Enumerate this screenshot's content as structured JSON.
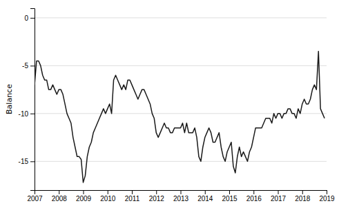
{
  "chart_data": {
    "type": "line",
    "ylabel": "Balance",
    "x": [
      2007.0,
      2007.0833333333333,
      2007.1666666666667,
      2007.25,
      2007.3333333333333,
      2007.4166666666667,
      2007.5,
      2007.5833333333333,
      2007.6666666666667,
      2007.75,
      2007.8333333333333,
      2007.9166666666667,
      2008.0,
      2008.0833333333333,
      2008.1666666666667,
      2008.25,
      2008.3333333333333,
      2008.4166666666667,
      2008.5,
      2008.5833333333333,
      2008.6666666666667,
      2008.75,
      2008.8333333333333,
      2008.9166666666667,
      2009.0,
      2009.0833333333333,
      2009.1666666666667,
      2009.25,
      2009.3333333333333,
      2009.4166666666667,
      2009.5,
      2009.5833333333333,
      2009.6666666666667,
      2009.75,
      2009.8333333333333,
      2009.9166666666667,
      2010.0,
      2010.0833333333333,
      2010.1666666666667,
      2010.25,
      2010.3333333333333,
      2010.4166666666667,
      2010.5,
      2010.5833333333333,
      2010.6666666666667,
      2010.75,
      2010.8333333333333,
      2010.9166666666667,
      2011.0,
      2011.0833333333333,
      2011.1666666666667,
      2011.25,
      2011.3333333333333,
      2011.4166666666667,
      2011.5,
      2011.5833333333333,
      2011.6666666666667,
      2011.75,
      2011.8333333333333,
      2011.9166666666667,
      2012.0,
      2012.0833333333333,
      2012.1666666666667,
      2012.25,
      2012.3333333333333,
      2012.4166666666667,
      2012.5,
      2012.5833333333333,
      2012.6666666666667,
      2012.75,
      2012.8333333333333,
      2012.9166666666667,
      2013.0,
      2013.0833333333333,
      2013.1666666666667,
      2013.25,
      2013.3333333333333,
      2013.4166666666667,
      2013.5,
      2013.5833333333333,
      2013.6666666666667,
      2013.75,
      2013.8333333333333,
      2013.9166666666667,
      2014.0,
      2014.0833333333333,
      2014.1666666666667,
      2014.25,
      2014.3333333333333,
      2014.4166666666667,
      2014.5,
      2014.5833333333333,
      2014.6666666666667,
      2014.75,
      2014.8333333333333,
      2014.9166666666667,
      2015.0,
      2015.0833333333333,
      2015.1666666666667,
      2015.25,
      2015.3333333333333,
      2015.4166666666667,
      2015.5,
      2015.5833333333333,
      2015.6666666666667,
      2015.75,
      2015.8333333333333,
      2015.9166666666667,
      2016.0,
      2016.0833333333333,
      2016.1666666666667,
      2016.25,
      2016.3333333333333,
      2016.4166666666667,
      2016.5,
      2016.5833333333333,
      2016.6666666666667,
      2016.75,
      2016.8333333333333,
      2016.9166666666667,
      2017.0,
      2017.0833333333333,
      2017.1666666666667,
      2017.25,
      2017.3333333333333,
      2017.4166666666667,
      2017.5,
      2017.5833333333333,
      2017.6666666666667,
      2017.75,
      2017.8333333333333,
      2017.9166666666667,
      2018.0,
      2018.0833333333333,
      2018.1666666666667,
      2018.25,
      2018.3333333333333,
      2018.4166666666667,
      2018.5,
      2018.5833333333333,
      2018.6666666666667,
      2018.75,
      2018.8333333333333,
      2018.9166666666667
    ],
    "values": [
      -7.0,
      -4.5,
      -4.5,
      -5.0,
      -6.0,
      -6.5,
      -6.5,
      -7.5,
      -7.5,
      -7.0,
      -7.5,
      -8.0,
      -7.5,
      -7.5,
      -8.0,
      -9.0,
      -10.0,
      -10.5,
      -11.0,
      -12.5,
      -13.5,
      -14.5,
      -14.5,
      -14.8,
      -17.2,
      -16.5,
      -14.5,
      -13.5,
      -13.0,
      -12.0,
      -11.5,
      -11.0,
      -10.5,
      -10.0,
      -9.5,
      -10.0,
      -9.5,
      -9.0,
      -10.0,
      -6.5,
      -6.0,
      -6.5,
      -7.0,
      -7.5,
      -7.0,
      -7.5,
      -6.5,
      -6.5,
      -7.0,
      -7.5,
      -8.0,
      -8.5,
      -8.0,
      -7.5,
      -7.5,
      -8.0,
      -8.5,
      -9.0,
      -10.0,
      -10.5,
      -12.0,
      -12.5,
      -12.0,
      -11.5,
      -11.0,
      -11.5,
      -11.5,
      -12.0,
      -12.0,
      -11.5,
      -11.5,
      -11.5,
      -11.5,
      -11.0,
      -12.0,
      -11.0,
      -12.0,
      -12.0,
      -12.0,
      -11.5,
      -12.5,
      -14.5,
      -15.0,
      -13.5,
      -12.5,
      -12.0,
      -11.5,
      -12.0,
      -13.0,
      -13.0,
      -12.5,
      -12.0,
      -13.5,
      -14.5,
      -15.0,
      -14.0,
      -13.5,
      -13.0,
      -15.5,
      -16.2,
      -14.5,
      -13.5,
      -14.5,
      -14.0,
      -14.5,
      -15.0,
      -14.0,
      -13.5,
      -12.5,
      -11.5,
      -11.5,
      -11.5,
      -11.5,
      -11.0,
      -10.5,
      -10.5,
      -10.5,
      -11.0,
      -10.0,
      -10.5,
      -10.0,
      -10.0,
      -10.5,
      -10.0,
      -10.0,
      -9.5,
      -9.5,
      -10.0,
      -10.0,
      -10.5,
      -9.5,
      -10.0,
      -9.0,
      -8.5,
      -9.0,
      -9.0,
      -8.5,
      -7.5,
      -7.0,
      -7.5,
      -3.5,
      -9.5,
      -10.0,
      -10.5
    ],
    "color": "#1a1a1a",
    "xlim": [
      2007.0,
      2019.0
    ],
    "ylim": [
      -18,
      1
    ],
    "xticks": [
      2007,
      2008,
      2009,
      2010,
      2011,
      2012,
      2013,
      2014,
      2015,
      2016,
      2017,
      2018,
      2019
    ],
    "yticks": [
      0,
      -5,
      -10,
      -15
    ],
    "grid": "y"
  }
}
